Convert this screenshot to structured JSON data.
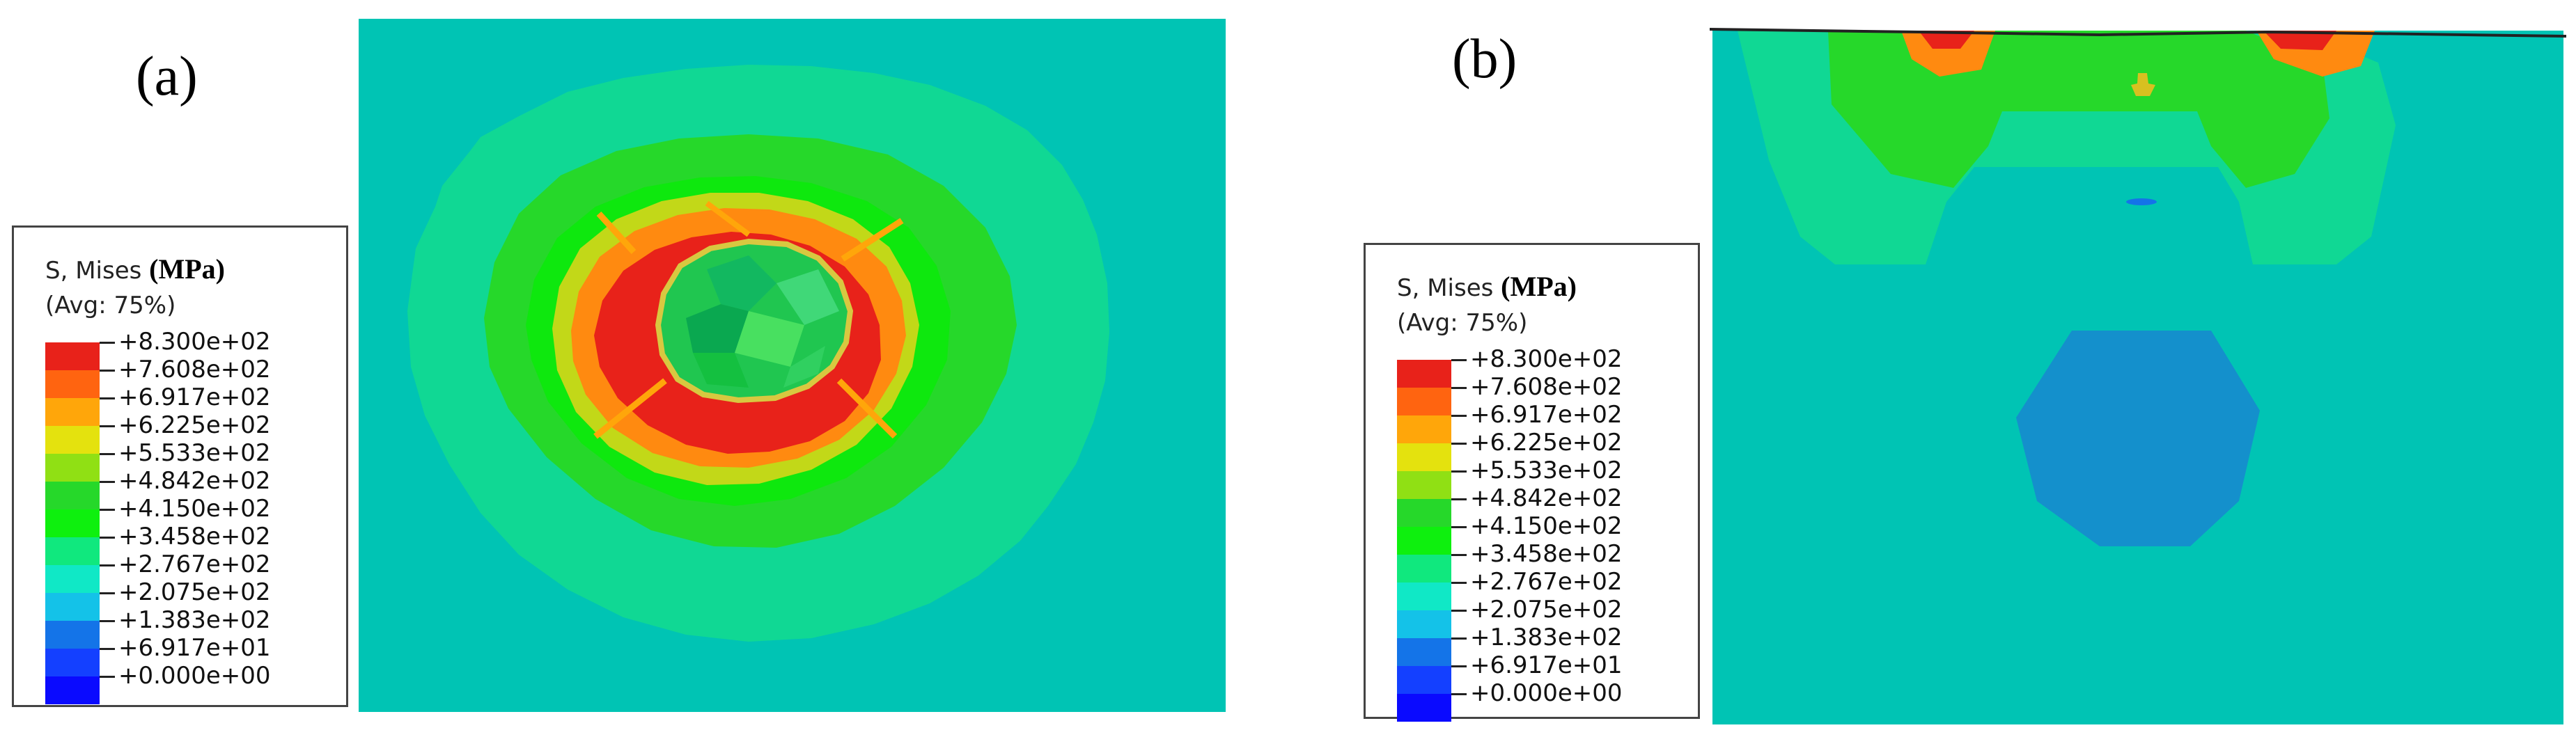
{
  "panels": [
    {
      "label": "(a)"
    },
    {
      "label": "(b)"
    }
  ],
  "legend": {
    "title": "S, Mises",
    "unit": "(MPa)",
    "averaging": "(Avg: 75%)",
    "levels": [
      "+8.300e+02",
      "+7.608e+02",
      "+6.917e+02",
      "+6.225e+02",
      "+5.533e+02",
      "+4.842e+02",
      "+4.150e+02",
      "+3.458e+02",
      "+2.767e+02",
      "+2.075e+02",
      "+1.383e+02",
      "+6.917e+01",
      "+0.000e+00"
    ],
    "colors": [
      "#e8221a",
      "#ff6410",
      "#ffa60a",
      "#e4e20e",
      "#90e014",
      "#26d82a",
      "#0ef00e",
      "#10e87e",
      "#10e8c6",
      "#14c2e8",
      "#1474e8",
      "#1440ff",
      "#0a0aff"
    ]
  },
  "background_color": "#00c4b4"
}
